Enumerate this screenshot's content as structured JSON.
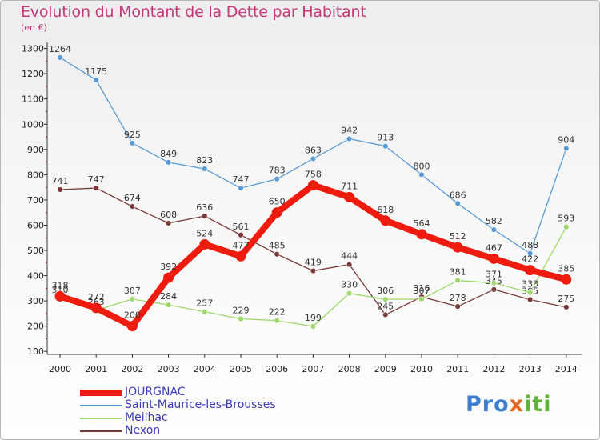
{
  "title": "Evolution du Montant de la Dette par Habitant",
  "subtitle": "(en €)",
  "logo": {
    "text": "Proxiti",
    "segments": [
      {
        "text": "Pro",
        "color": "#3f7fd0"
      },
      {
        "text": "x",
        "color": "#e0671c"
      },
      {
        "text": "i",
        "color": "#62b13a"
      },
      {
        "text": "ti",
        "color": "#62b13a"
      }
    ]
  },
  "chart_data": {
    "type": "line",
    "x": [
      "2000",
      "2001",
      "2002",
      "2003",
      "2004",
      "2005",
      "2006",
      "2007",
      "2008",
      "2009",
      "2010",
      "2011",
      "2012",
      "2013",
      "2014"
    ],
    "ylim": [
      100,
      1300
    ],
    "yticks": [
      100,
      200,
      300,
      400,
      500,
      600,
      700,
      800,
      900,
      1000,
      1100,
      1200,
      1300
    ],
    "grid": false,
    "legend": "bottom-left",
    "series": [
      {
        "name": "Saint-Maurice-les-Brousses",
        "color": "#5b9bd5",
        "values": [
          1264,
          1175,
          925,
          849,
          823,
          747,
          783,
          863,
          942,
          913,
          800,
          686,
          582,
          488,
          904
        ]
      },
      {
        "name": "Nexon",
        "color": "#7a3a3a",
        "values": [
          741,
          747,
          674,
          608,
          636,
          561,
          485,
          419,
          444,
          245,
          316,
          278,
          345,
          305,
          275
        ]
      },
      {
        "name": "Meilhac",
        "color": "#9ed86a",
        "values": [
          310,
          263,
          307,
          284,
          257,
          229,
          222,
          199,
          330,
          306,
          307,
          381,
          371,
          333,
          593
        ]
      },
      {
        "name": "JOURGNAC",
        "color": "#ee1c0e",
        "values": [
          318,
          272,
          200,
          392,
          524,
          477,
          650,
          758,
          711,
          618,
          564,
          512,
          467,
          422,
          385
        ]
      }
    ],
    "legend_order": [
      "JOURGNAC",
      "Saint-Maurice-les-Brousses",
      "Meilhac",
      "Nexon"
    ]
  }
}
